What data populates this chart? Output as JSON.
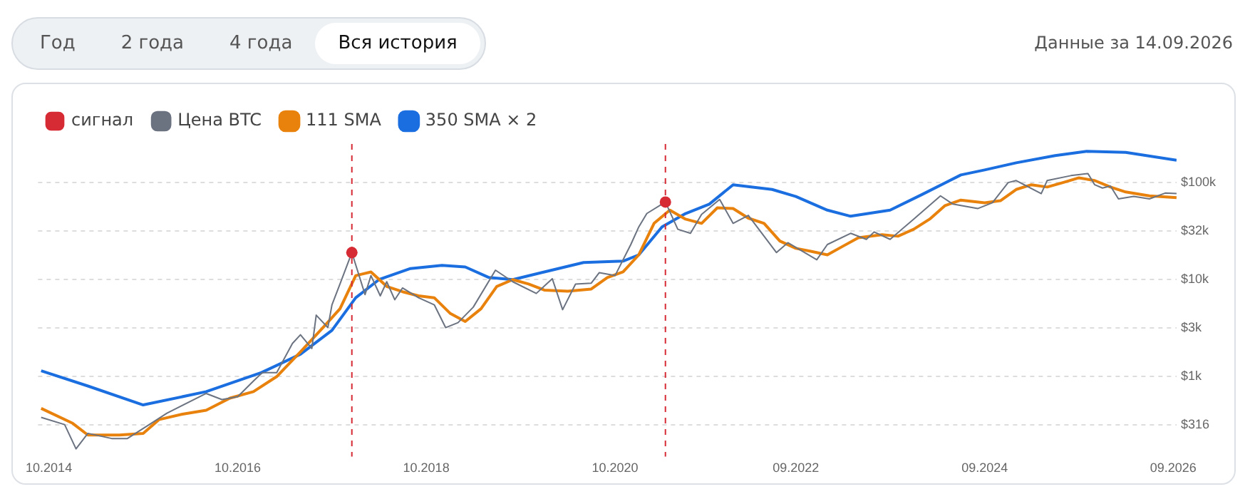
{
  "chart_data": {
    "type": "line",
    "subtitle": "Данные за 14.09.2026",
    "annotations": [
      "Год",
      "2 года",
      "4 года",
      "Вся история"
    ],
    "log": "y",
    "grid": "y",
    "legend": "top left",
    "marker": "none",
    "line_style": "solid",
    "xlim": [
      "2014-08-20",
      "2026-09-14"
    ],
    "xticks": [
      {
        "value": "2014-10",
        "label": "10.2014"
      },
      {
        "value": "2016-10",
        "label": "10.2016"
      },
      {
        "value": "2018-10",
        "label": "10.2018"
      },
      {
        "value": "2020-10",
        "label": "10.2020"
      },
      {
        "value": "2022-09",
        "label": "09.2022"
      },
      {
        "value": "2024-09",
        "label": "09.2024"
      },
      {
        "value": "2026-09",
        "label": "09.2026"
      }
    ],
    "ylim": [
      150,
      250000
    ],
    "yticks": [
      {
        "value": 316,
        "label": "$316"
      },
      {
        "value": 1000,
        "label": "$1k"
      },
      {
        "value": 3162,
        "label": "$3k"
      },
      {
        "value": 10000,
        "label": "$10k"
      },
      {
        "value": 31623,
        "label": "$32k"
      },
      {
        "value": 100000,
        "label": "$100k"
      }
    ],
    "ref_lines": [
      {
        "axis": "x",
        "value": "2017-12-17",
        "color": "#d62b35",
        "line_style": "dashed"
      },
      {
        "axis": "x",
        "value": "2021-04-14",
        "color": "#d62b35",
        "line_style": "dashed"
      }
    ],
    "series": [
      {
        "name": "Цена BTC",
        "color": "#6b7280",
        "x": [
          "2014-09",
          "2014-12",
          "2015-01-14",
          "2015-03",
          "2015-06",
          "2015-08",
          "2015-11",
          "2016-01",
          "2016-06",
          "2016-08",
          "2016-10",
          "2016-12",
          "2017-01-04",
          "2017-03",
          "2017-05",
          "2017-06",
          "2017-07-15",
          "2017-08",
          "2017-09-15",
          "2017-10",
          "2017-11",
          "2017-12-17",
          "2018-02-06",
          "2018-03",
          "2018-04-06",
          "2018-05",
          "2018-06",
          "2018-07",
          "2018-09",
          "2018-11",
          "2018-12-15",
          "2019-02",
          "2019-04",
          "2019-06-26",
          "2019-09",
          "2019-12",
          "2020-02",
          "2020-03-12",
          "2020-05",
          "2020-07",
          "2020-08",
          "2020-10",
          "2020-12",
          "2021-01",
          "2021-02",
          "2021-04-14",
          "2021-06",
          "2021-07-20",
          "2021-09",
          "2021-11-10",
          "2022-01",
          "2022-03",
          "2022-06-18",
          "2022-08",
          "2022-11-21",
          "2023-01",
          "2023-04",
          "2023-06",
          "2023-07",
          "2023-09",
          "2023-12",
          "2024-03-14",
          "2024-05",
          "2024-08-05",
          "2024-10",
          "2024-12",
          "2025-01",
          "2025-04-08",
          "2025-05",
          "2025-08",
          "2025-10-06",
          "2025-11",
          "2025-12",
          "2026-01",
          "2026-02",
          "2026-04",
          "2026-06",
          "2026-08",
          "2026-09-14"
        ],
        "values": [
          380,
          320,
          180,
          260,
          230,
          230,
          330,
          420,
          670,
          580,
          620,
          900,
          1100,
          1100,
          2200,
          2700,
          1950,
          4300,
          3200,
          5500,
          9000,
          19000,
          7000,
          11000,
          6800,
          9500,
          6200,
          8200,
          6500,
          5500,
          3200,
          3600,
          5200,
          12500,
          9500,
          7200,
          10200,
          4900,
          9000,
          9200,
          11800,
          11000,
          23000,
          35000,
          48000,
          63000,
          33000,
          30000,
          47000,
          67000,
          38000,
          46000,
          19000,
          24000,
          16000,
          23000,
          30000,
          26000,
          31000,
          26000,
          42000,
          73000,
          60000,
          54000,
          62000,
          100000,
          105000,
          77000,
          105000,
          118000,
          124000,
          95000,
          88000,
          92000,
          68000,
          72000,
          68000,
          78000,
          77000
        ]
      },
      {
        "name": "111 SMA",
        "color": "#e8820c",
        "x": [
          "2014-09",
          "2015-01",
          "2015-03",
          "2015-07",
          "2015-10",
          "2015-12",
          "2016-03",
          "2016-06",
          "2016-09",
          "2016-12",
          "2017-03",
          "2017-06",
          "2017-09",
          "2017-11",
          "2018-01",
          "2018-03",
          "2018-05",
          "2018-07",
          "2018-09",
          "2018-11",
          "2019-01",
          "2019-03",
          "2019-05",
          "2019-07",
          "2019-09",
          "2019-11",
          "2020-01",
          "2020-04",
          "2020-07",
          "2020-09",
          "2020-11",
          "2021-01",
          "2021-03",
          "2021-05",
          "2021-07",
          "2021-09",
          "2021-11",
          "2022-01",
          "2022-03",
          "2022-05",
          "2022-07",
          "2022-09",
          "2022-11",
          "2023-01",
          "2023-03",
          "2023-05",
          "2023-08",
          "2023-10",
          "2023-12",
          "2024-02",
          "2024-04",
          "2024-06",
          "2024-09",
          "2024-11",
          "2025-01",
          "2025-03",
          "2025-05",
          "2025-07",
          "2025-09",
          "2025-11",
          "2026-01",
          "2026-03",
          "2026-06",
          "2026-09-14"
        ],
        "values": [
          470,
          330,
          250,
          250,
          260,
          360,
          410,
          450,
          600,
          700,
          1000,
          1800,
          3300,
          5000,
          11000,
          12000,
          8500,
          7500,
          6800,
          6500,
          4500,
          3700,
          5000,
          8500,
          10000,
          9000,
          7800,
          7600,
          8000,
          10500,
          12000,
          18000,
          38000,
          52000,
          42000,
          38000,
          55000,
          54000,
          43000,
          38000,
          25000,
          21000,
          19500,
          18000,
          22000,
          27000,
          29000,
          28000,
          33000,
          42000,
          58000,
          66000,
          62000,
          65000,
          85000,
          95000,
          90000,
          100000,
          112000,
          105000,
          90000,
          80000,
          73000,
          70000
        ]
      },
      {
        "name": "350 SMA × 2",
        "color": "#1a6ee0",
        "x": [
          "2014-09",
          "2015-03",
          "2015-10",
          "2016-06",
          "2017-01",
          "2017-06",
          "2017-10",
          "2018-01",
          "2018-04",
          "2018-08",
          "2018-12",
          "2019-03",
          "2019-06",
          "2019-09",
          "2020-01",
          "2020-06",
          "2020-11",
          "2021-01",
          "2021-04",
          "2021-07",
          "2021-10",
          "2022-01",
          "2022-06",
          "2022-09",
          "2023-01",
          "2023-04",
          "2023-09",
          "2024-01",
          "2024-06",
          "2024-09",
          "2025-01",
          "2025-06",
          "2025-10",
          "2026-03",
          "2026-09-14"
        ],
        "values": [
          1150,
          800,
          510,
          700,
          1100,
          1700,
          3000,
          6500,
          10000,
          13000,
          14000,
          13500,
          10500,
          10000,
          12000,
          15000,
          15500,
          18000,
          35000,
          48000,
          60000,
          95000,
          85000,
          72000,
          52000,
          45000,
          52000,
          75000,
          120000,
          135000,
          160000,
          190000,
          210000,
          205000,
          170000
        ]
      },
      {
        "name": "сигнал",
        "type": "scatter",
        "marker": "circle",
        "color": "#d62b35",
        "x": [
          "2017-12-17",
          "2021-04-14"
        ],
        "values": [
          19000,
          63000
        ]
      }
    ]
  }
}
